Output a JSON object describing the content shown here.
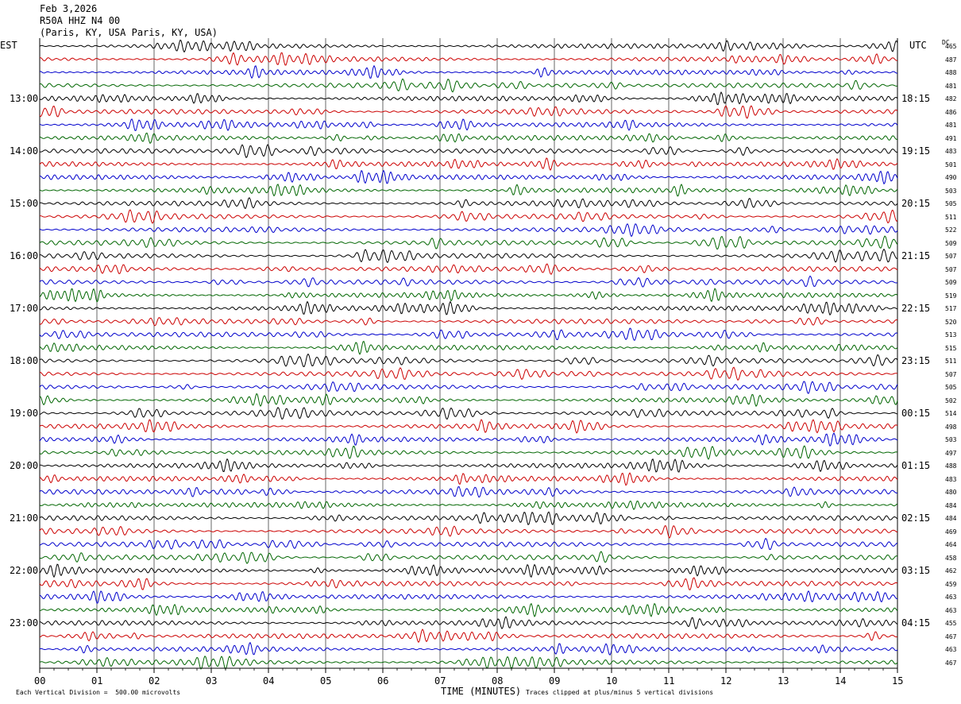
{
  "header": {
    "date": "Feb 3,2026",
    "station": "R50A HHZ N4 00",
    "location": "(Paris, KY, USA Paris, KY, USA)"
  },
  "axis": {
    "left_tz": "EST",
    "right_tz": "UTC",
    "dc_label": "DC",
    "xlabel": "TIME (MINUTES)"
  },
  "footer": {
    "scale_note": "Each Vertical Division =  500.00 microvolts",
    "clip_note": "Traces clipped at plus/minus 5 vertical divisions"
  },
  "colors": {
    "trace_cycle": [
      "#000000",
      "#cc0000",
      "#0000cc",
      "#006600"
    ],
    "grid": "#000000"
  },
  "chart_data": {
    "type": "line",
    "title": "",
    "xlim": [
      0,
      15
    ],
    "x_ticks": [
      "00",
      "01",
      "02",
      "03",
      "04",
      "05",
      "06",
      "07",
      "08",
      "09",
      "10",
      "11",
      "12",
      "13",
      "14",
      "15"
    ],
    "left_hour_labels": [
      "13:00",
      "14:00",
      "15:00",
      "16:00",
      "17:00",
      "18:00",
      "19:00",
      "20:00",
      "21:00",
      "22:00",
      "23:00"
    ],
    "right_hour_labels": [
      "18:15",
      "19:15",
      "20:15",
      "21:15",
      "22:15",
      "23:15",
      "00:15",
      "01:15",
      "02:15",
      "03:15",
      "04:15"
    ],
    "trace_minutes": 15,
    "traces_per_hour": 4,
    "dc_offsets": [
      465,
      487,
      488,
      481,
      482,
      486,
      481,
      491,
      483,
      501,
      490,
      503,
      505,
      511,
      522,
      509,
      507,
      507,
      509,
      519,
      517,
      520,
      513,
      515,
      511,
      507,
      505,
      502,
      514,
      498,
      503,
      497,
      488,
      483,
      480,
      484,
      484,
      469,
      464,
      458,
      462,
      459,
      463,
      463,
      455,
      467,
      463,
      467
    ]
  }
}
